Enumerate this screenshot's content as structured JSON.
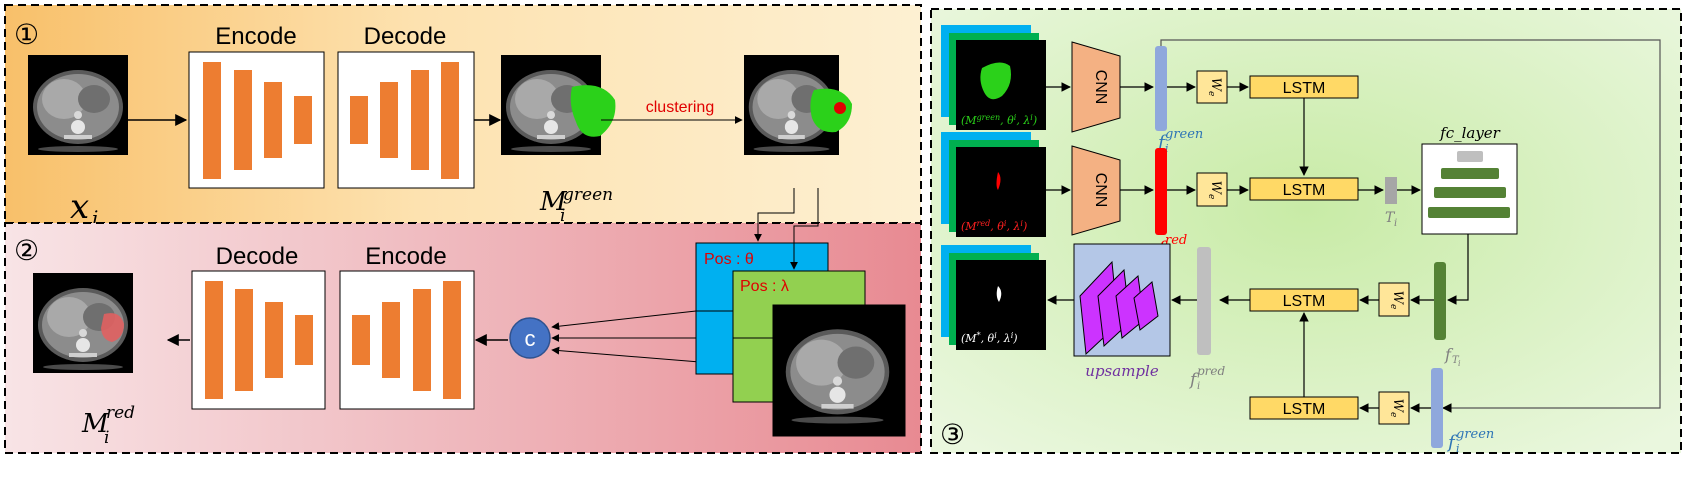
{
  "panel1": {
    "number": "①",
    "encode_label": "Encode",
    "decode_label": "Decode",
    "input_label": "x",
    "input_sub": "i",
    "mask_label": "M",
    "mask_sup": "green",
    "mask_sub": "i",
    "arrow_label": "clustering"
  },
  "panel2": {
    "number": "②",
    "decode_label": "Decode",
    "encode_label": "Encode",
    "concat_symbol": "c",
    "pos_theta": "Pos : θ",
    "pos_lambda": "Pos : λ",
    "output_label": "M",
    "output_sup": "red",
    "output_sub": "i"
  },
  "panel3": {
    "number": "③",
    "cnn_label": "CNN",
    "lstm_label": "LSTM",
    "we_label": "W",
    "we_sub": "e",
    "fc_layer_label": "fc_layer",
    "upsample_label": "upsample",
    "t_label": "T",
    "t_sub": "i",
    "feat_f": "f",
    "feat_green_sup": "green",
    "feat_red_sup": "red",
    "feat_pred_sup": "pred",
    "feat_sub": "i",
    "ft_sub": "T",
    "stack1_caption": "(M",
    "stack1_caption_sup": "green",
    "stack1_caption_rest": ", θ",
    "stack1_caption_tail": ", λ",
    "stack1_caption_end": ")",
    "stack2_caption": "(M",
    "stack2_caption_sup": "red",
    "stack2_caption_rest": ", θ",
    "stack2_caption_tail": ", λ",
    "stack2_caption_end": ")",
    "stack3_caption": "(M",
    "stack3_caption_sup": "*",
    "stack3_caption_rest": ", θ",
    "stack3_caption_tail": ", λ",
    "stack3_caption_end": ")",
    "caption_sup_i": "i"
  },
  "colors": {
    "encoder_bar": "#ed7d31",
    "cnn": "#f4b183",
    "lstm": "#ffd966",
    "we_box": "#ffe699",
    "green_feature": "#8fa8dc",
    "red_feature": "#ff0000",
    "gray_feature": "#bfbfbf",
    "fc_green": "#548235",
    "upsample_bg": "#b4c7e7",
    "upsample_fill": "#cc33ff",
    "cyan": "#00b0f0",
    "lime": "#92d050",
    "concat_circle": "#4472c4"
  }
}
